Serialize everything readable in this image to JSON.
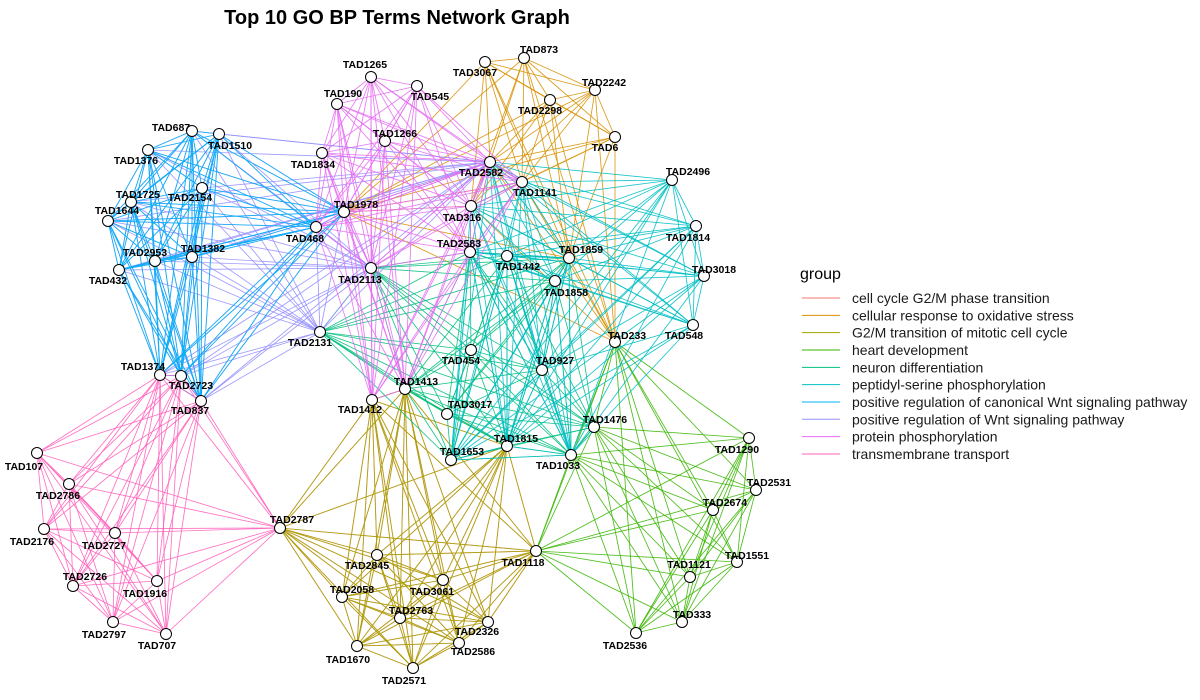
{
  "title": "Top 10 GO BP Terms Network Graph",
  "legend": {
    "title": "group"
  },
  "nodes": [
    "TAD873",
    "TAD3067",
    "TAD2242",
    "TAD2298",
    "TAD6",
    "TAD545",
    "TAD1265",
    "TAD190",
    "TAD1266",
    "TAD1834",
    "TAD2582",
    "TAD1141",
    "TAD1978",
    "TAD316",
    "TAD468",
    "TAD2583",
    "TAD1859",
    "TAD1442",
    "TAD2113",
    "TAD1858",
    "TAD2496",
    "TAD1814",
    "TAD3018",
    "TAD548",
    "TAD233",
    "TAD2131",
    "TAD454",
    "TAD927",
    "TAD1413",
    "TAD1412",
    "TAD3017",
    "TAD1653",
    "TAD1815",
    "TAD1033",
    "TAD1476",
    "TAD1290",
    "TAD2531",
    "TAD2674",
    "TAD1551",
    "TAD1121",
    "TAD333",
    "TAD2536",
    "TAD1118",
    "TAD2787",
    "TAD2845",
    "TAD2058",
    "TAD3061",
    "TAD2763",
    "TAD2326",
    "TAD2586",
    "TAD1670",
    "TAD2571",
    "TAD687",
    "TAD1510",
    "TAD1376",
    "TAD1725",
    "TAD1644",
    "TAD2154",
    "TAD2953",
    "TAD1382",
    "TAD432",
    "TAD1374",
    "TAD2723",
    "TAD837",
    "TAD107",
    "TAD2786",
    "TAD2176",
    "TAD2727",
    "TAD2726",
    "TAD1916",
    "TAD2797",
    "TAD707"
  ],
  "groups": [
    {
      "label": "cell cycle G2/M phase transition",
      "color": "#F8766D",
      "members": [
        28,
        29,
        32,
        42,
        43,
        44,
        45,
        46,
        47,
        48,
        49,
        50,
        51
      ]
    },
    {
      "label": "cellular response to oxidative stress",
      "color": "#D89000",
      "members": [
        0,
        1,
        2,
        3,
        4,
        10,
        11,
        12,
        13,
        16,
        24
      ]
    },
    {
      "label": "G2/M transition of mitotic cell cycle",
      "color": "#A3A500",
      "members": [
        28,
        29,
        32,
        42,
        43,
        44,
        45,
        46,
        47,
        48,
        49,
        50,
        51
      ]
    },
    {
      "label": "heart development",
      "color": "#39B600",
      "members": [
        24,
        33,
        34,
        35,
        36,
        37,
        38,
        39,
        40,
        41,
        42
      ]
    },
    {
      "label": "neuron differentiation",
      "color": "#00BF7D",
      "members": [
        15,
        16,
        17,
        18,
        19,
        25,
        26,
        27,
        28,
        30,
        31,
        32,
        33,
        34
      ]
    },
    {
      "label": "peptidyl-serine phosphorylation",
      "color": "#00BFC4",
      "members": [
        10,
        11,
        13,
        15,
        16,
        17,
        19,
        20,
        21,
        22,
        23,
        27,
        31,
        32,
        33
      ]
    },
    {
      "label": "positive regulation of canonical Wnt signaling pathway",
      "color": "#00B0F6",
      "members": [
        12,
        14,
        52,
        53,
        54,
        55,
        56,
        57,
        58,
        59,
        60,
        61,
        62,
        63
      ]
    },
    {
      "label": "positive regulation of Wnt signaling pathway",
      "color": "#9590FF",
      "members": [
        10,
        12,
        14,
        18,
        25,
        52,
        53,
        54,
        55,
        56,
        57,
        58,
        59,
        60,
        61,
        62,
        63
      ]
    },
    {
      "label": "protein phosphorylation",
      "color": "#E76BF3",
      "members": [
        5,
        6,
        7,
        8,
        9,
        10,
        11,
        12,
        13,
        14,
        15,
        18,
        28,
        29
      ]
    },
    {
      "label": "transmembrane transport",
      "color": "#FF62BC",
      "members": [
        43,
        61,
        62,
        63,
        64,
        65,
        66,
        67,
        68,
        69,
        70,
        71
      ]
    }
  ]
}
